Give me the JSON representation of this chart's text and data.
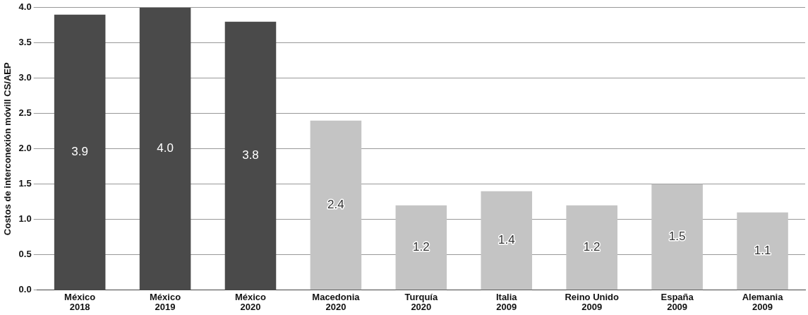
{
  "chart_data": {
    "type": "bar",
    "ylabel": "Costos de interconexión móvill CS/AEP",
    "categories": [
      "México\n2018",
      "México\n2019",
      "México\n2020",
      "Macedonia\n2020",
      "Turquía\n2020",
      "Italia\n2009",
      "Reino Unido\n2009",
      "España\n2009",
      "Alemania\n2009"
    ],
    "values": [
      3.9,
      4.0,
      3.8,
      2.4,
      1.2,
      1.4,
      1.2,
      1.5,
      1.1
    ],
    "colors": [
      "#4a4a4a",
      "#4a4a4a",
      "#4a4a4a",
      "#c4c4c4",
      "#c4c4c4",
      "#c4c4c4",
      "#c4c4c4",
      "#c4c4c4",
      "#c4c4c4"
    ],
    "ylim": [
      0,
      4.0
    ],
    "yticks": [
      {
        "value": 0,
        "label": "0.0"
      },
      {
        "value": 0.5,
        "label": "0.5"
      },
      {
        "value": 1,
        "label": "1.0"
      },
      {
        "value": 1.5,
        "label": "1.5"
      },
      {
        "value": 2,
        "label": "2.0"
      },
      {
        "value": 2.5,
        "label": "2.5"
      },
      {
        "value": 3,
        "label": "3.0"
      },
      {
        "value": 3.5,
        "label": "3.5"
      },
      {
        "value": 4,
        "label": "4.0"
      }
    ],
    "value_labels": [
      "3.9",
      "4.0",
      "3.8",
      "2.4",
      "1.2",
      "1.4",
      "1.2",
      "1.5",
      "1.1"
    ],
    "grid": "y"
  }
}
